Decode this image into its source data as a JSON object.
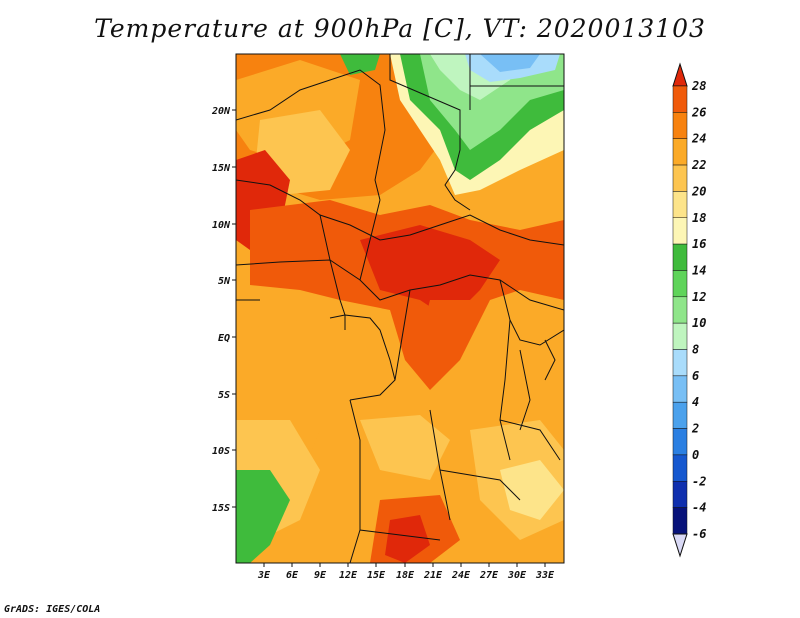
{
  "title": "Temperature at 900hPa [C], VT: 2020013103",
  "footer": "GrADS: IGES/COLA",
  "map": {
    "lat_labels": [
      "20N",
      "15N",
      "10N",
      "5N",
      "EQ",
      "5S",
      "10S",
      "15S"
    ],
    "lon_labels": [
      "3E",
      "6E",
      "9E",
      "12E",
      "15E",
      "18E",
      "21E",
      "24E",
      "27E",
      "30E",
      "33E"
    ]
  },
  "colorbar": {
    "levels": [
      "28",
      "26",
      "24",
      "22",
      "20",
      "18",
      "16",
      "14",
      "12",
      "10",
      "8",
      "6",
      "4",
      "2",
      "0",
      "-2",
      "-4",
      "-6"
    ],
    "colors": [
      "#e0280a",
      "#f05a0a",
      "#f7820f",
      "#fbaa28",
      "#fdc550",
      "#fde48a",
      "#fdf6b5",
      "#3fbb3c",
      "#5fd45a",
      "#8fe58a",
      "#bff5bf",
      "#a9dcfb",
      "#78bff5",
      "#4ba1ec",
      "#2a7fe2",
      "#1557cf",
      "#0f2fae",
      "#07127a",
      "#d9d9f5"
    ]
  }
}
